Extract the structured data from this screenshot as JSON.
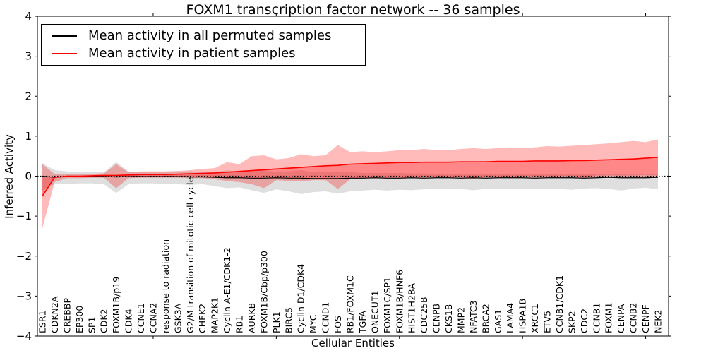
{
  "title": "FOXM1 transcription factor network -- 36 samples",
  "legend": {
    "items": [
      {
        "label": "Mean activity in all permuted samples",
        "color": "#000000"
      },
      {
        "label": "Mean activity in patient samples",
        "color": "#ff0000"
      }
    ]
  },
  "chart_data": {
    "type": "line",
    "title": "FOXM1 transcription factor network -- 36 samples",
    "xlabel": "Cellular Entities",
    "ylabel": "Inferred Activity",
    "ylim": [
      -4,
      4
    ],
    "y_tick_step": 1,
    "x_major_tick_every": 10,
    "grid": false,
    "legend_position": "upper left",
    "background": "#ffffff",
    "categories": [
      "ESR1",
      "CDKN2A",
      "CREBBP",
      "EP300",
      "SP1",
      "CDK2",
      "FOXM1B/p19",
      "CDK4",
      "CCNE1",
      "CCNA2",
      "response to radiation",
      "GSK3A",
      "G2/M transition of mitotic cell cycle",
      "CHEK2",
      "MAP2K1",
      "Cyclin A-E1/CDK1-2",
      "RB1",
      "AURKB",
      "FOXM1B/Cbp/p300",
      "PLK1",
      "BIRC5",
      "Cyclin D1/CDK4",
      "MYC",
      "CCND1",
      "FOS",
      "RB1/FOXM1C",
      "TGFA",
      "ONECUT1",
      "FOXM1C/SP1",
      "FOXM1B/HNF6",
      "HIST1H2BA",
      "CDC25B",
      "CENPB",
      "CKS1B",
      "MMP2",
      "NFATC3",
      "BRCA2",
      "GAS1",
      "LAMA4",
      "HSPA1B",
      "XRCC1",
      "ETV5",
      "CCNB1/CDK1",
      "SKP2",
      "CDC2",
      "CCNB1",
      "FOXM1",
      "CENPA",
      "CCNB2",
      "CENPF",
      "NEK2"
    ],
    "series": [
      {
        "name": "Mean activity in all permuted samples",
        "color": "#000000",
        "values": [
          0,
          -0.03,
          -0.01,
          -0.01,
          -0.01,
          -0.01,
          -0.02,
          -0.01,
          -0.01,
          -0.01,
          -0.01,
          -0.01,
          -0.02,
          -0.02,
          -0.03,
          -0.04,
          -0.04,
          -0.05,
          -0.05,
          -0.04,
          -0.05,
          -0.05,
          -0.06,
          -0.06,
          -0.06,
          -0.05,
          -0.05,
          -0.04,
          -0.05,
          -0.05,
          -0.04,
          -0.05,
          -0.04,
          -0.04,
          -0.05,
          -0.04,
          -0.05,
          -0.04,
          -0.04,
          -0.04,
          -0.05,
          -0.04,
          -0.04,
          -0.04,
          -0.05,
          -0.04,
          -0.03,
          -0.04,
          -0.04,
          -0.04,
          -0.03
        ]
      },
      {
        "name": "Mean activity in patient samples",
        "color": "#ff0000",
        "values": [
          -0.5,
          -0.03,
          0,
          0,
          0.01,
          0.02,
          0.02,
          0.03,
          0.04,
          0.04,
          0.04,
          0.05,
          0.06,
          0.07,
          0.08,
          0.1,
          0.12,
          0.14,
          0.16,
          0.18,
          0.2,
          0.22,
          0.24,
          0.26,
          0.27,
          0.3,
          0.31,
          0.32,
          0.33,
          0.34,
          0.34,
          0.35,
          0.35,
          0.35,
          0.36,
          0.36,
          0.36,
          0.37,
          0.37,
          0.37,
          0.38,
          0.38,
          0.38,
          0.39,
          0.39,
          0.4,
          0.41,
          0.42,
          0.43,
          0.45,
          0.47
        ]
      }
    ],
    "bands": [
      {
        "name": "permuted-std-band",
        "color": "#808080",
        "opacity": 0.25,
        "upper": [
          0.32,
          0.15,
          0.12,
          0.1,
          0.1,
          0.1,
          0.35,
          0.12,
          0.1,
          0.1,
          0.1,
          0.1,
          0.12,
          0.1,
          0.1,
          0.15,
          0.1,
          0.12,
          0.15,
          0.1,
          0.12,
          0.15,
          0.1,
          0.12,
          0.1,
          0.1,
          0.08,
          0.08,
          0.08,
          0.08,
          0.07,
          0.07,
          0.06,
          0.06,
          0.06,
          0.05,
          0.06,
          0.05,
          0.05,
          0.05,
          0.05,
          0.05,
          0.05,
          0.05,
          0.04,
          0.05,
          0.04,
          0.05,
          0.04,
          0.05,
          0.05
        ],
        "lower": [
          -0.35,
          -0.2,
          -0.2,
          -0.18,
          -0.18,
          -0.2,
          -0.42,
          -0.2,
          -0.18,
          -0.18,
          -0.2,
          -0.2,
          -0.22,
          -0.2,
          -0.25,
          -0.3,
          -0.28,
          -0.35,
          -0.42,
          -0.33,
          -0.38,
          -0.45,
          -0.4,
          -0.38,
          -0.44,
          -0.38,
          -0.36,
          -0.34,
          -0.36,
          -0.34,
          -0.35,
          -0.33,
          -0.32,
          -0.33,
          -0.32,
          -0.35,
          -0.32,
          -0.31,
          -0.32,
          -0.31,
          -0.32,
          -0.31,
          -0.32,
          -0.34,
          -0.31,
          -0.3,
          -0.32,
          -0.36,
          -0.31,
          -0.29,
          -0.33
        ]
      },
      {
        "name": "patient-std-band",
        "color": "#ff0000",
        "opacity": 0.27,
        "upper": [
          0.3,
          0.05,
          0.05,
          0.05,
          0.06,
          0.07,
          0.3,
          0.1,
          0.12,
          0.12,
          0.12,
          0.13,
          0.15,
          0.18,
          0.2,
          0.35,
          0.3,
          0.5,
          0.52,
          0.42,
          0.45,
          0.55,
          0.5,
          0.52,
          0.78,
          0.6,
          0.62,
          0.6,
          0.62,
          0.65,
          0.65,
          0.68,
          0.65,
          0.65,
          0.68,
          0.7,
          0.68,
          0.7,
          0.72,
          0.7,
          0.72,
          0.75,
          0.74,
          0.76,
          0.78,
          0.8,
          0.82,
          0.85,
          0.88,
          0.85,
          0.92
        ],
        "lower": [
          -1.3,
          -0.15,
          -0.05,
          -0.05,
          -0.04,
          -0.04,
          -0.3,
          -0.05,
          -0.04,
          -0.04,
          -0.04,
          -0.04,
          -0.05,
          -0.05,
          -0.08,
          -0.12,
          -0.15,
          -0.2,
          -0.3,
          -0.1,
          -0.12,
          -0.13,
          -0.1,
          -0.1,
          -0.32,
          -0.08,
          -0.06,
          -0.05,
          -0.04,
          -0.04,
          -0.03,
          -0.03,
          -0.02,
          -0.02,
          -0.02,
          -0.08,
          -0.01,
          -0.01,
          -0.01,
          0,
          0,
          0,
          0,
          0.01,
          -0.05,
          0.02,
          0.02,
          0.02,
          0.02,
          0.03,
          0.02
        ]
      }
    ],
    "mean_gap_fill": {
      "name": "between-means-fill",
      "color": "#ff0000",
      "opacity": 0.27
    },
    "reference_line": {
      "y": 0,
      "style": "dotted",
      "color": "#000000"
    }
  }
}
